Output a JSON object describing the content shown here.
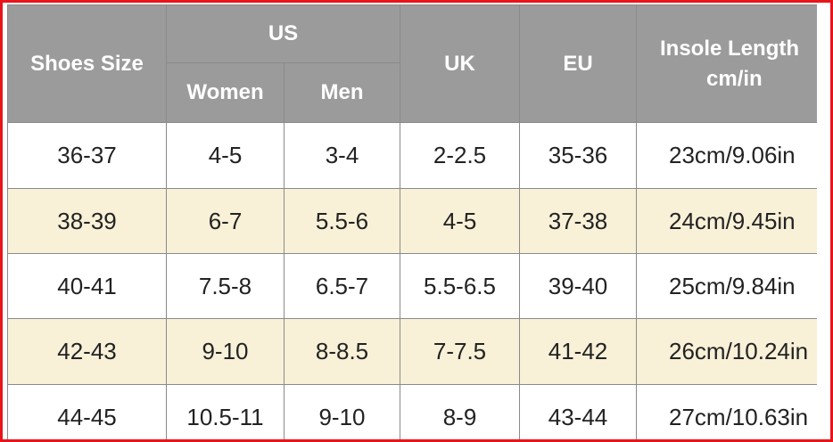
{
  "table": {
    "header": {
      "shoes_size": "Shoes Size",
      "us": "US",
      "women": "Women",
      "men": "Men",
      "uk": "UK",
      "eu": "EU",
      "insole": [
        "Insole Length",
        "cm/in"
      ]
    },
    "rows": [
      [
        "36-37",
        "4-5",
        "3-4",
        "2-2.5",
        "35-36",
        "23cm/9.06in"
      ],
      [
        "38-39",
        "6-7",
        "5.5-6",
        "4-5",
        "37-38",
        "24cm/9.45in"
      ],
      [
        "40-41",
        "7.5-8",
        "6.5-7",
        "5.5-6.5",
        "39-40",
        "25cm/9.84in"
      ],
      [
        "42-43",
        "9-10",
        "8-8.5",
        "7-7.5",
        "41-42",
        "26cm/10.24in"
      ],
      [
        "44-45",
        "10.5-11",
        "9-10",
        "8-9",
        "43-44",
        "27cm/10.63in"
      ]
    ]
  }
}
